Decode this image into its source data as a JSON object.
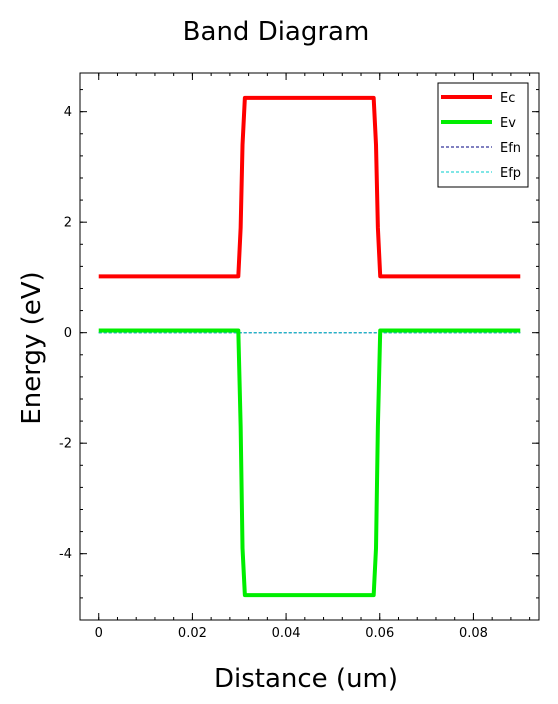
{
  "chart_data": {
    "type": "line",
    "title": "Band Diagram",
    "xlabel": "Distance (um)",
    "ylabel": "Energy (eV)",
    "xlim": [
      -0.004,
      0.094
    ],
    "ylim": [
      -5.2,
      4.7
    ],
    "xticks": [
      0,
      0.02,
      0.04,
      0.06,
      0.08
    ],
    "xtick_labels": [
      "0",
      "0.02",
      "0.04",
      "0.06",
      "0.08"
    ],
    "yticks": [
      -4,
      -2,
      0,
      2,
      4
    ],
    "ytick_labels": [
      "-4",
      "-2",
      "0",
      "2",
      "4"
    ],
    "grid": false,
    "legend": "top-right",
    "series": [
      {
        "name": "Ec",
        "color": "#ff0000",
        "style": "solid",
        "x": [
          0,
          0.0298,
          0.0303,
          0.0307,
          0.0312,
          0.0587,
          0.0592,
          0.0596,
          0.0601,
          0.09
        ],
        "y": [
          1.02,
          1.02,
          1.9,
          3.4,
          4.25,
          4.25,
          3.4,
          1.9,
          1.02,
          1.02
        ]
      },
      {
        "name": "Ev",
        "color": "#00ee00",
        "style": "solid",
        "x": [
          0,
          0.0298,
          0.0303,
          0.0307,
          0.0312,
          0.0587,
          0.0592,
          0.0596,
          0.0601,
          0.09
        ],
        "y": [
          0.04,
          0.04,
          -1.7,
          -3.9,
          -4.75,
          -4.75,
          -3.9,
          -1.7,
          0.04,
          0.04
        ]
      },
      {
        "name": "Efn",
        "color": "#000080",
        "style": "dashed",
        "x": [
          0,
          0.09
        ],
        "y": [
          0,
          0
        ]
      },
      {
        "name": "Efp",
        "color": "#00cccc",
        "style": "dashed",
        "x": [
          0,
          0.09
        ],
        "y": [
          0,
          0
        ]
      }
    ]
  }
}
